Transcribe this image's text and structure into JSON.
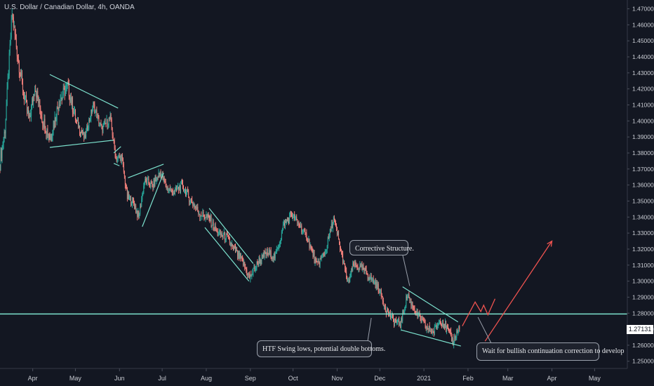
{
  "chart_title": "U.S. Dollar / Canadian Dollar, 4h, OANDA",
  "current_price_label": "1.27131",
  "colors": {
    "background": "#131722",
    "up": "#26a69a",
    "down": "#ef5350",
    "candle_body": "#f07f7a",
    "support_line": "#7de3cf",
    "trend_lines": "#7de3cf",
    "projection": "#ef5350",
    "axis_text": "#c9ccd3"
  },
  "chart_data": {
    "type": "candlestick",
    "title": "U.S. Dollar / Canadian Dollar, 4h, OANDA",
    "x_ticks": [
      "Apr",
      "May",
      "Jun",
      "Jul",
      "Aug",
      "Sep",
      "Oct",
      "Nov",
      "Dec",
      "2021",
      "Feb",
      "Mar",
      "Apr",
      "May"
    ],
    "y_ticks": [
      "1.47000",
      "1.46000",
      "1.45000",
      "1.44000",
      "1.43000",
      "1.42000",
      "1.41000",
      "1.40000",
      "1.39000",
      "1.38000",
      "1.37000",
      "1.36000",
      "1.35000",
      "1.34000",
      "1.33000",
      "1.32000",
      "1.31000",
      "1.30000",
      "1.29000",
      "1.28000",
      "1.27000",
      "1.26000",
      "1.25000"
    ],
    "ylim": [
      1.2455,
      1.4755
    ],
    "xlim": [
      "2020-03-09",
      "2021-05-24"
    ],
    "price_path": [
      {
        "date": "2020-03-09",
        "price": 1.372
      },
      {
        "date": "2020-03-13",
        "price": 1.395
      },
      {
        "date": "2020-03-18",
        "price": 1.467
      },
      {
        "date": "2020-03-22",
        "price": 1.44
      },
      {
        "date": "2020-03-26",
        "price": 1.418
      },
      {
        "date": "2020-03-30",
        "price": 1.4
      },
      {
        "date": "2020-04-03",
        "price": 1.422
      },
      {
        "date": "2020-04-08",
        "price": 1.402
      },
      {
        "date": "2020-04-14",
        "price": 1.389
      },
      {
        "date": "2020-04-20",
        "price": 1.412
      },
      {
        "date": "2020-04-26",
        "price": 1.422
      },
      {
        "date": "2020-05-02",
        "price": 1.4
      },
      {
        "date": "2020-05-08",
        "price": 1.389
      },
      {
        "date": "2020-05-14",
        "price": 1.41
      },
      {
        "date": "2020-05-20",
        "price": 1.395
      },
      {
        "date": "2020-05-26",
        "price": 1.402
      },
      {
        "date": "2020-05-30",
        "price": 1.376
      },
      {
        "date": "2020-06-03",
        "price": 1.378
      },
      {
        "date": "2020-06-07",
        "price": 1.352
      },
      {
        "date": "2020-06-11",
        "price": 1.35
      },
      {
        "date": "2020-06-15",
        "price": 1.34
      },
      {
        "date": "2020-06-19",
        "price": 1.362
      },
      {
        "date": "2020-06-25",
        "price": 1.36
      },
      {
        "date": "2020-06-30",
        "price": 1.368
      },
      {
        "date": "2020-07-05",
        "price": 1.358
      },
      {
        "date": "2020-07-10",
        "price": 1.355
      },
      {
        "date": "2020-07-15",
        "price": 1.36
      },
      {
        "date": "2020-07-22",
        "price": 1.35
      },
      {
        "date": "2020-07-28",
        "price": 1.342
      },
      {
        "date": "2020-08-03",
        "price": 1.34
      },
      {
        "date": "2020-08-09",
        "price": 1.33
      },
      {
        "date": "2020-08-15",
        "price": 1.328
      },
      {
        "date": "2020-08-21",
        "price": 1.32
      },
      {
        "date": "2020-08-27",
        "price": 1.312
      },
      {
        "date": "2020-09-01",
        "price": 1.302
      },
      {
        "date": "2020-09-07",
        "price": 1.312
      },
      {
        "date": "2020-09-13",
        "price": 1.318
      },
      {
        "date": "2020-09-19",
        "price": 1.315
      },
      {
        "date": "2020-09-25",
        "price": 1.335
      },
      {
        "date": "2020-09-30",
        "price": 1.342
      },
      {
        "date": "2020-10-06",
        "price": 1.335
      },
      {
        "date": "2020-10-12",
        "price": 1.326
      },
      {
        "date": "2020-10-18",
        "price": 1.31
      },
      {
        "date": "2020-10-24",
        "price": 1.318
      },
      {
        "date": "2020-10-30",
        "price": 1.339
      },
      {
        "date": "2020-11-04",
        "price": 1.32
      },
      {
        "date": "2020-11-09",
        "price": 1.298
      },
      {
        "date": "2020-11-13",
        "price": 1.31
      },
      {
        "date": "2020-11-19",
        "price": 1.308
      },
      {
        "date": "2020-11-25",
        "price": 1.302
      },
      {
        "date": "2020-12-01",
        "price": 1.295
      },
      {
        "date": "2020-12-06",
        "price": 1.282
      },
      {
        "date": "2020-12-11",
        "price": 1.276
      },
      {
        "date": "2020-12-16",
        "price": 1.273
      },
      {
        "date": "2020-12-21",
        "price": 1.292
      },
      {
        "date": "2020-12-27",
        "price": 1.28
      },
      {
        "date": "2021-01-02",
        "price": 1.272
      },
      {
        "date": "2021-01-08",
        "price": 1.268
      },
      {
        "date": "2021-01-13",
        "price": 1.276
      },
      {
        "date": "2021-01-18",
        "price": 1.27
      },
      {
        "date": "2021-01-22",
        "price": 1.262
      },
      {
        "date": "2021-01-26",
        "price": 1.271
      }
    ],
    "support_level": 1.2795,
    "last_price": 1.27131,
    "trend_lines": [
      {
        "from": {
          "date": "2020-04-13",
          "price": 1.429
        },
        "to": {
          "date": "2020-05-31",
          "price": 1.408
        }
      },
      {
        "from": {
          "date": "2020-04-13",
          "price": 1.3835
        },
        "to": {
          "date": "2020-05-28",
          "price": 1.388
        }
      },
      {
        "from": {
          "date": "2020-05-28",
          "price": 1.38
        },
        "to": {
          "date": "2020-06-02",
          "price": 1.384
        }
      },
      {
        "from": {
          "date": "2020-05-28",
          "price": 1.3735
        },
        "to": {
          "date": "2020-06-01",
          "price": 1.372
        }
      },
      {
        "from": {
          "date": "2020-06-07",
          "price": 1.3645
        },
        "to": {
          "date": "2020-07-02",
          "price": 1.373
        }
      },
      {
        "from": {
          "date": "2020-06-17",
          "price": 1.334
        },
        "to": {
          "date": "2020-07-02",
          "price": 1.3675
        }
      },
      {
        "from": {
          "date": "2020-08-03",
          "price": 1.3455
        },
        "to": {
          "date": "2020-09-03",
          "price": 1.311
        }
      },
      {
        "from": {
          "date": "2020-07-31",
          "price": 1.3335
        },
        "to": {
          "date": "2020-08-31",
          "price": 1.3
        }
      },
      {
        "from": {
          "date": "2020-12-17",
          "price": 1.2965
        },
        "to": {
          "date": "2021-01-25",
          "price": 1.2745
        }
      },
      {
        "from": {
          "date": "2020-12-16",
          "price": 1.2695
        },
        "to": {
          "date": "2021-01-27",
          "price": 1.2595
        }
      }
    ],
    "projection_path": [
      {
        "date": "2021-01-28",
        "price": 1.272
      },
      {
        "date": "2021-02-06",
        "price": 1.287
      },
      {
        "date": "2021-02-10",
        "price": 1.281
      },
      {
        "date": "2021-02-12",
        "price": 1.285
      },
      {
        "date": "2021-02-15",
        "price": 1.279
      },
      {
        "date": "2021-02-20",
        "price": 1.289
      }
    ],
    "projection_arrow": {
      "from": {
        "date": "2021-02-13",
        "price": 1.2625
      },
      "to": {
        "date": "2021-04-01",
        "price": 1.325
      }
    },
    "annotations": [
      {
        "text": "Corrective Structure.",
        "pointer": {
          "date": "2020-12-22",
          "price": 1.297
        }
      },
      {
        "text": "HTF Swing lows, potential double bottoms.",
        "pointer": {
          "date": "2020-11-25",
          "price": 1.277
        }
      },
      {
        "text": "Wait for bullish continuation correction to develop",
        "pointer": {
          "date": "2021-02-08",
          "price": 1.2775
        }
      }
    ]
  }
}
